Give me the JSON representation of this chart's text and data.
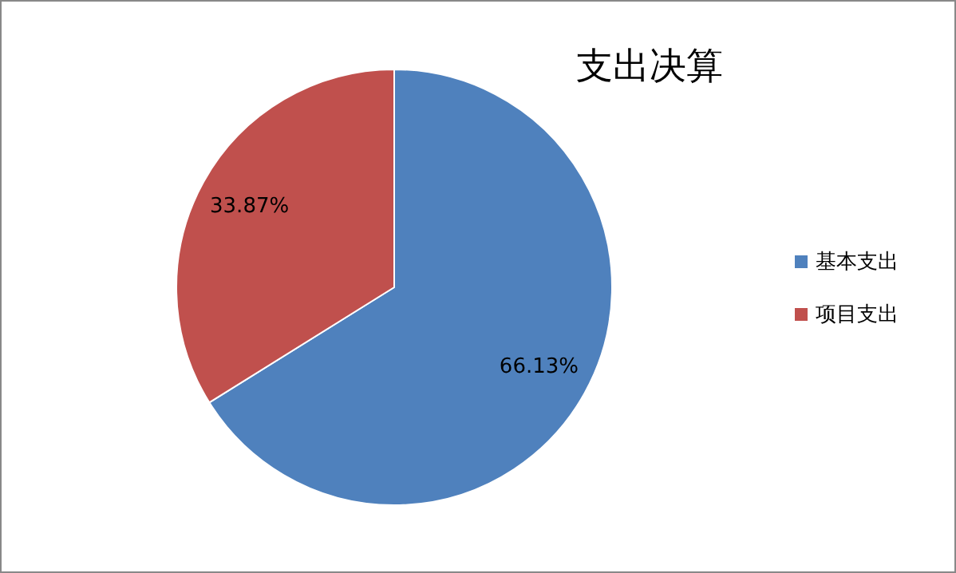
{
  "chart_data": {
    "type": "pie",
    "title": "支出决算",
    "categories": [
      "基本支出",
      "项目支出"
    ],
    "values": [
      66.13,
      33.87
    ],
    "colors": [
      "#4f81bd",
      "#c0504d"
    ],
    "value_labels": [
      "66.13%",
      "33.87%"
    ],
    "legend": "right"
  }
}
